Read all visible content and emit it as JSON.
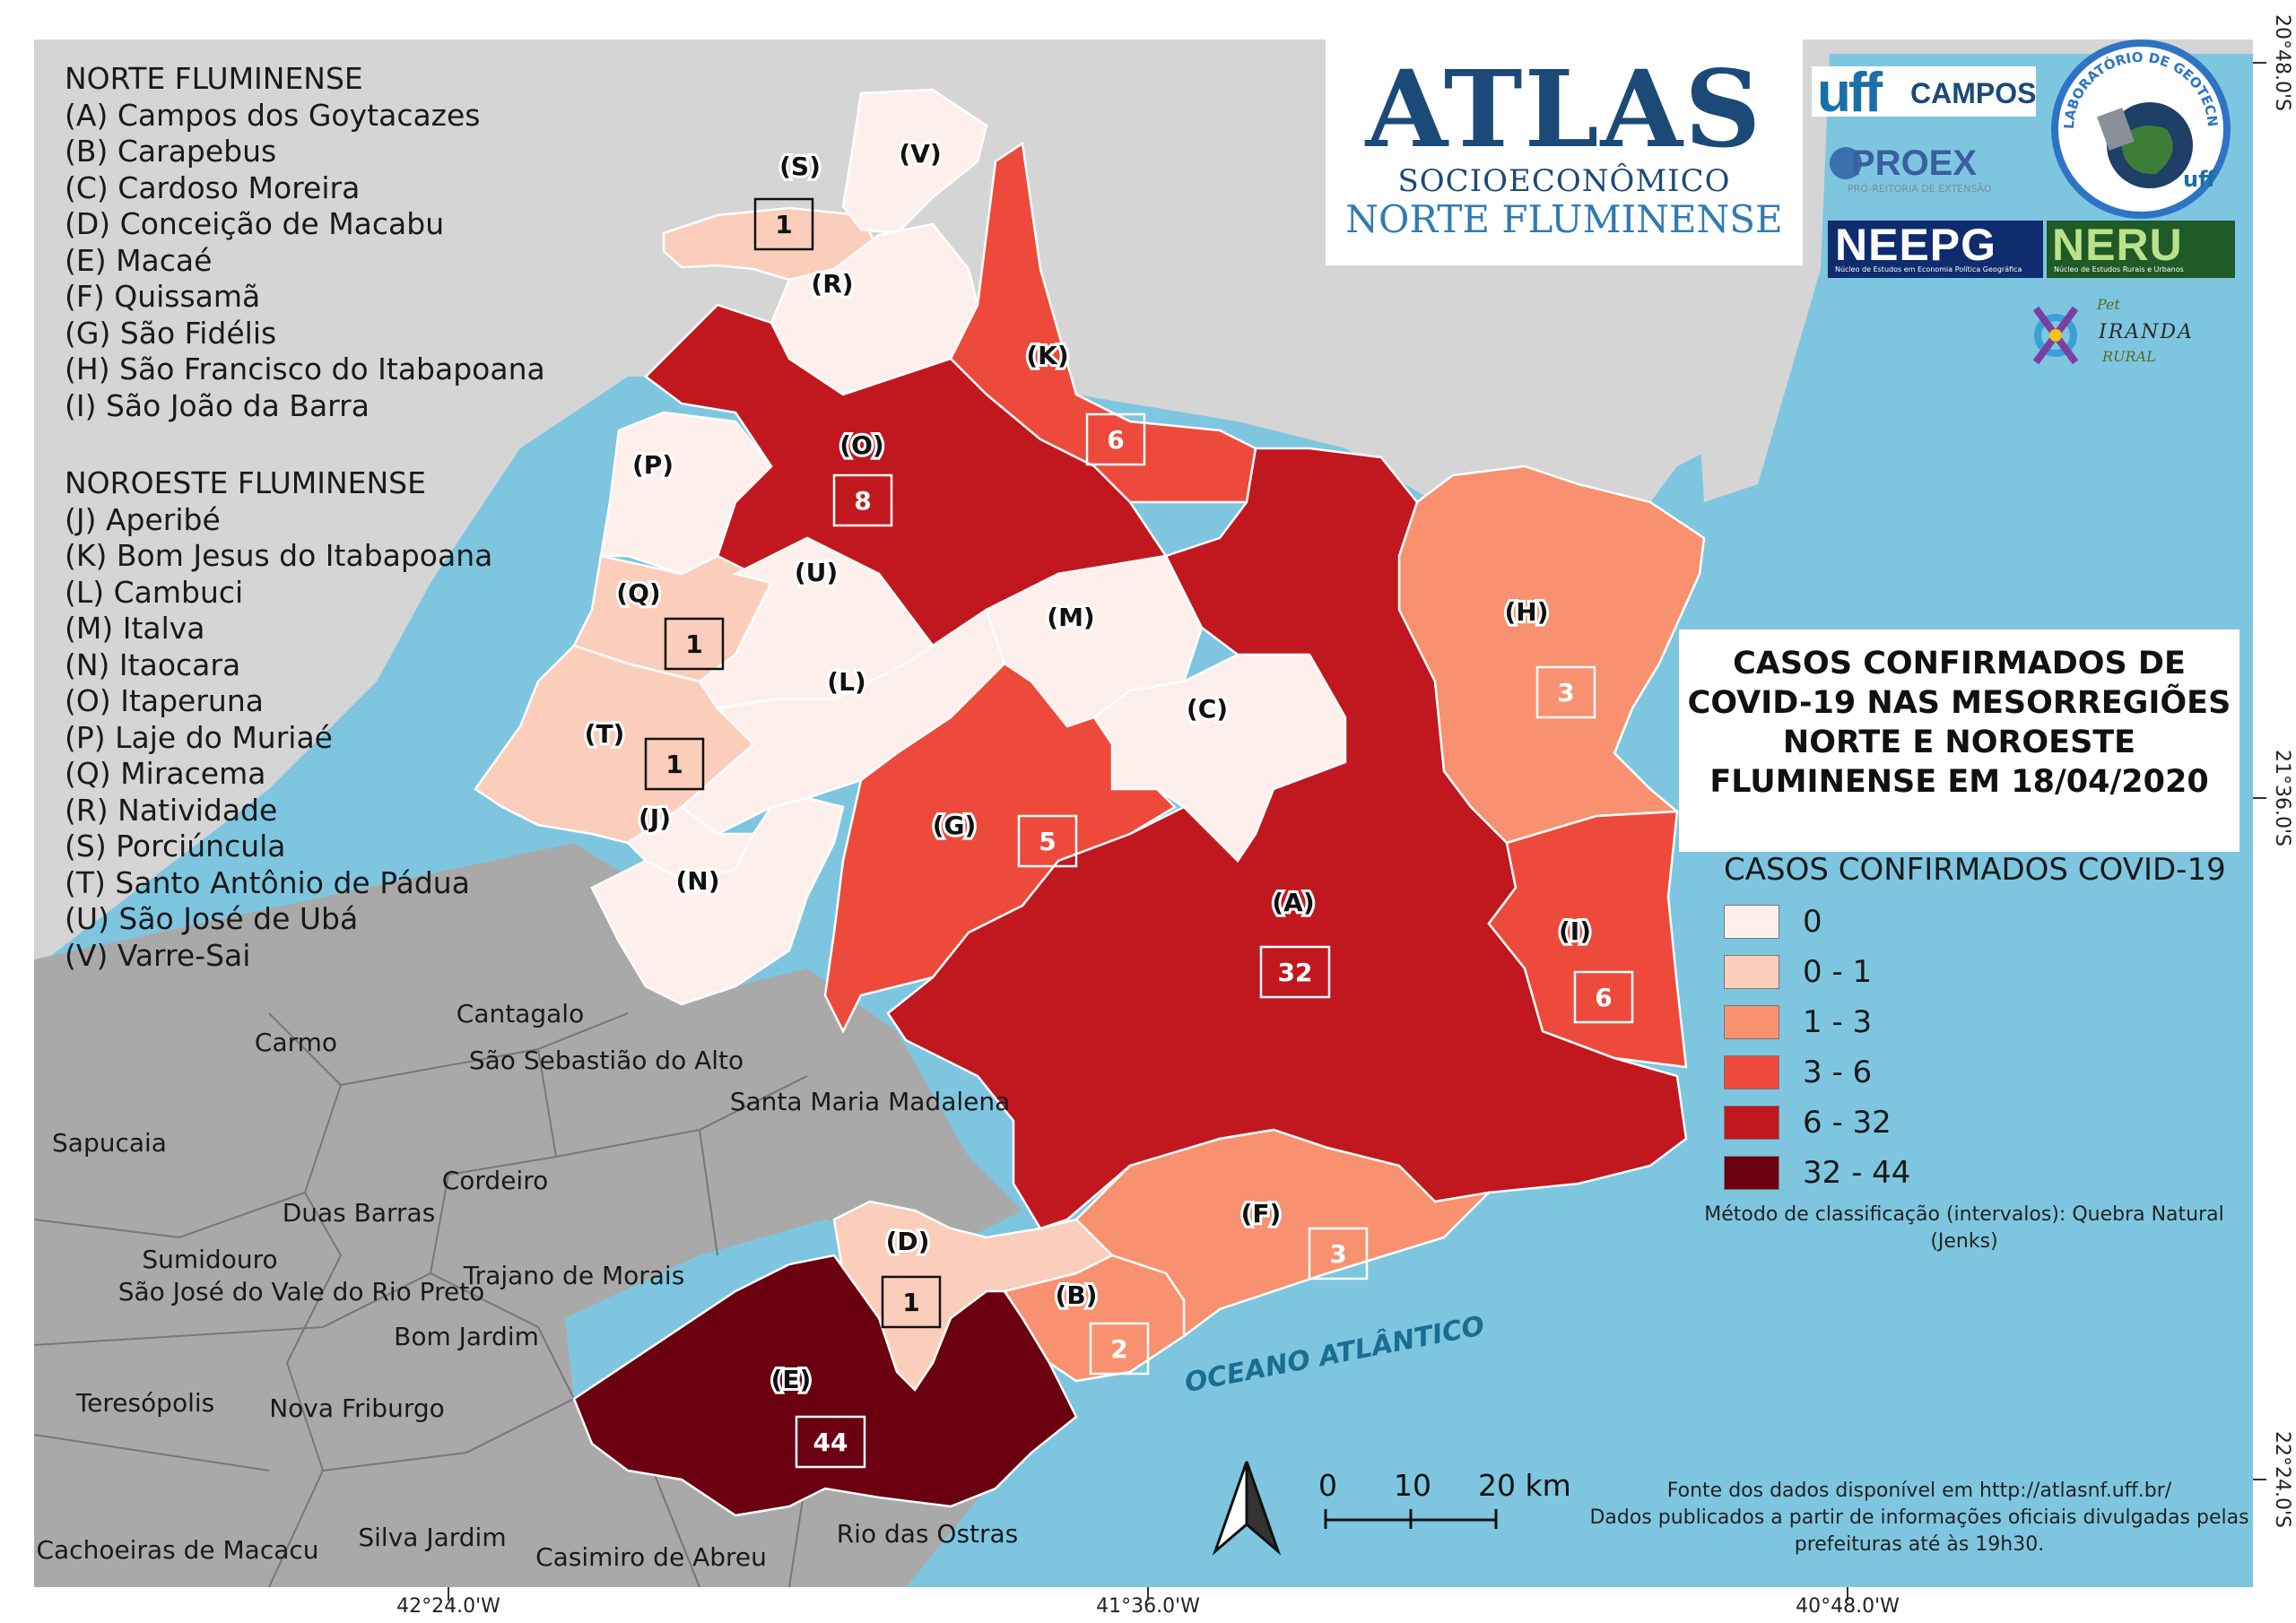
{
  "legend_groups": [
    {
      "heading": "NORTE FLUMINENSE",
      "items": [
        "(A) Campos dos Goytacazes",
        "(B) Carapebus",
        "(C) Cardoso Moreira",
        "(D) Conceição de Macabu",
        "(E) Macaé",
        "(F) Quissamã",
        "(G) São Fidélis",
        "(H) São Francisco do Itabapoana",
        "(I) São João da Barra"
      ]
    },
    {
      "heading": "NOROESTE FLUMINENSE",
      "items": [
        "(J) Aperibé",
        "(K) Bom Jesus do Itabapoana",
        "(L) Cambuci",
        "(M) Italva",
        "(N) Itaocara",
        "(O) Itaperuna",
        "(P) Laje do Muriaé",
        "(Q) Miracema",
        "(R) Natividade",
        "(S) Porciúncula",
        "(T) Santo Antônio de Pádua",
        "(U) São José de Ubá",
        "(V) Varre-Sai"
      ]
    }
  ],
  "atlas_logo": {
    "line1": "ATLAS",
    "line2": "SOCIOECONÔMICO",
    "line3": "NORTE FLUMINENSE"
  },
  "partner_logos": {
    "uff": "uff",
    "uff_campos": "CAMPOS",
    "proex": "PROEX",
    "proex_sub": "PRÓ-REITORIA DE EXTENSÃO",
    "neepg": "NEEPG",
    "neepg_sub": "Núcleo de Estudos em Economia Política Geográfica",
    "neru": "NERU",
    "neru_sub": "Núcleo de Estudos Rurais e Urbanos",
    "lageot_ring": "LABORATÓRIO DE GEOTECNOLOGIAS - LAGEOT",
    "lageot_uff": "uff",
    "pet_a": "Pet",
    "pet_b": "IRANDA",
    "pet_c": "RURAL"
  },
  "title": [
    "CASOS CONFIRMADOS DE",
    "COVID-19 NAS MESORREGIÕES",
    "NORTE E NOROESTE",
    "FLUMINENSE EM 18/04/2020"
  ],
  "classes": {
    "title": "CASOS CONFIRMADOS COVID-19",
    "items": [
      {
        "label": "0",
        "color": "#fdf0ec"
      },
      {
        "label": "0 - 1",
        "color": "#fbcdbb"
      },
      {
        "label": "1 - 3",
        "color": "#f8916f"
      },
      {
        "label": "3 - 6",
        "color": "#ee4a3b"
      },
      {
        "label": "6 - 32",
        "color": "#c1181f"
      },
      {
        "label": "32 - 44",
        "color": "#6a0010"
      }
    ]
  },
  "method": [
    "Método de classificação (intervalos): Quebra Natural",
    "(Jenks)"
  ],
  "source": [
    "Fonte dos dados disponível em http://atlasnf.uff.br/",
    "Dados publicados a partir de informações oficiais divulgadas pelas",
    "prefeituras até às 19h30."
  ],
  "scale": {
    "labels": [
      "0",
      "10",
      "20 km"
    ]
  },
  "ocean_label": "OCEANO ATLÂNTICO",
  "coords": {
    "bottom": [
      "42°24.0'W",
      "41°36.0'W",
      "40°48.0'W"
    ],
    "right": [
      "20°48.0'S",
      "21°36.0'S",
      "22°24.0'S"
    ]
  },
  "municipalities": [
    {
      "letter": "(A)",
      "cases": "32",
      "color": "#c1181f"
    },
    {
      "letter": "(B)",
      "cases": "2",
      "color": "#f8916f"
    },
    {
      "letter": "(C)",
      "cases": "",
      "color": "#fdf0ec"
    },
    {
      "letter": "(D)",
      "cases": "1",
      "color": "#fbcdbb"
    },
    {
      "letter": "(E)",
      "cases": "44",
      "color": "#6a0010"
    },
    {
      "letter": "(F)",
      "cases": "3",
      "color": "#f8916f"
    },
    {
      "letter": "(G)",
      "cases": "5",
      "color": "#ee4a3b"
    },
    {
      "letter": "(H)",
      "cases": "3",
      "color": "#f8916f"
    },
    {
      "letter": "(I)",
      "cases": "6",
      "color": "#ee4a3b"
    },
    {
      "letter": "(J)",
      "cases": "",
      "color": "#fdf0ec"
    },
    {
      "letter": "(K)",
      "cases": "6",
      "color": "#ee4a3b"
    },
    {
      "letter": "(L)",
      "cases": "",
      "color": "#fdf0ec"
    },
    {
      "letter": "(M)",
      "cases": "",
      "color": "#fdf0ec"
    },
    {
      "letter": "(N)",
      "cases": "",
      "color": "#fdf0ec"
    },
    {
      "letter": "(O)",
      "cases": "8",
      "color": "#c1181f"
    },
    {
      "letter": "(P)",
      "cases": "",
      "color": "#fdf0ec"
    },
    {
      "letter": "(Q)",
      "cases": "1",
      "color": "#fbcdbb"
    },
    {
      "letter": "(R)",
      "cases": "",
      "color": "#fdf0ec"
    },
    {
      "letter": "(S)",
      "cases": "1",
      "color": "#fbcdbb"
    },
    {
      "letter": "(T)",
      "cases": "1",
      "color": "#fbcdbb"
    },
    {
      "letter": "(U)",
      "cases": "",
      "color": "#fdf0ec"
    },
    {
      "letter": "(V)",
      "cases": "",
      "color": "#fdf0ec"
    }
  ],
  "neighbors": [
    "Cantagalo",
    "Carmo",
    "São Sebastião do Alto",
    "Santa Maria Madalena",
    "Sapucaia",
    "Cordeiro",
    "Duas Barras",
    "Sumidouro",
    "São José do Vale do Rio Preto",
    "Trajano de Morais",
    "Bom Jardim",
    "Teresópolis",
    "Nova Friburgo",
    "Cachoeiras de Macacu",
    "Silva Jardim",
    "Casimiro de Abreu",
    "Rio das Ostras"
  ],
  "colors": {
    "ocean": "#7ec6e0",
    "land_outside": "#d5d5d5",
    "neighbor_land": "#a9a9a9",
    "frame": "#ffffff"
  }
}
